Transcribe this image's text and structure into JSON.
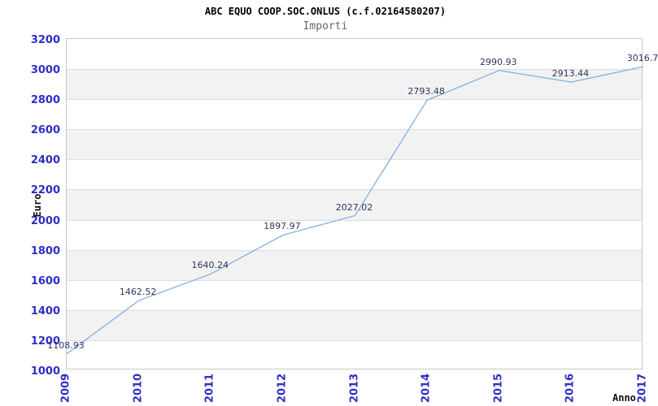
{
  "chart_data": {
    "type": "line",
    "title": "ABC EQUO COOP.SOC.ONLUS (c.f.02164580207)",
    "subtitle": "Importi",
    "ylabel": "Euro",
    "xlabel": "Anno",
    "categories": [
      "2009",
      "2010",
      "2011",
      "2012",
      "2013",
      "2014",
      "2015",
      "2016",
      "2017"
    ],
    "series": [
      {
        "name": "Importi",
        "values": [
          1108.93,
          1462.52,
          1640.24,
          1897.97,
          2027.02,
          2793.48,
          2990.93,
          2913.44,
          3016.7
        ]
      }
    ],
    "point_labels": [
      "1108.93",
      "1462.52",
      "1640.24",
      "1897.97",
      "2027.02",
      "2793.48",
      "2990.93",
      "2913.44",
      "3016.7"
    ],
    "ylim": [
      1000,
      3200
    ],
    "ytick_step": 200,
    "yticks": [
      "3200",
      "3000",
      "2800",
      "2600",
      "2400",
      "2200",
      "2000",
      "1800",
      "1600",
      "1400",
      "1200",
      "1000"
    ],
    "grid": "horizontal-lines-with-alternating-bands",
    "legend": "none",
    "colors": {
      "line": "#85afe0",
      "tick_label": "#2e2ec8",
      "point_label": "#333366",
      "band": "#f2f2f2",
      "gridline": "#dddddd",
      "plot_border": "#c8c8c8",
      "title": "#000000",
      "subtitle": "#666666",
      "axis_title": "#111111",
      "background": "#ffffff"
    }
  }
}
